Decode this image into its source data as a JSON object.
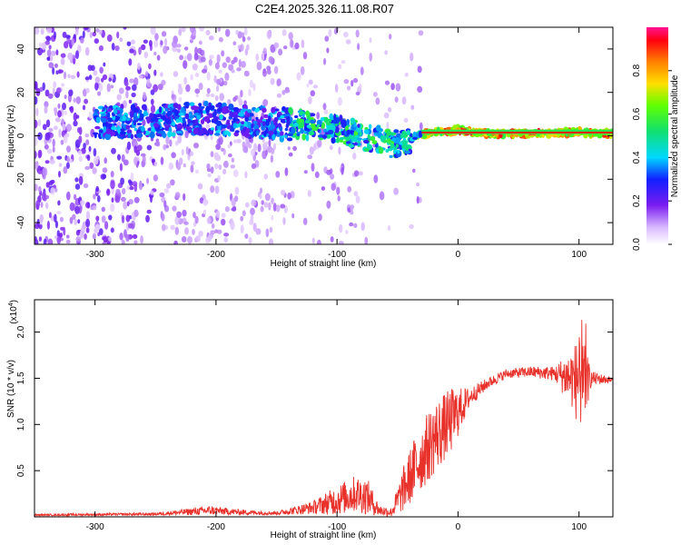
{
  "title": "C2E4.2025.326.11.08.R07",
  "chart_data": [
    {
      "type": "heatmap",
      "name": "spectrogram",
      "xlabel": "Height of straight line (km)",
      "ylabel": "Frequency (Hz)",
      "xlim": [
        -350,
        128
      ],
      "ylim": [
        -50,
        50
      ],
      "xticks": [
        -300,
        -200,
        -100,
        0,
        100
      ],
      "yticks": [
        -40,
        -20,
        0,
        20,
        40
      ],
      "xtick_labels": [
        "-300",
        "-200",
        "-100",
        "0",
        "100"
      ],
      "ytick_labels": [
        "-40",
        "-20",
        "0",
        "20",
        "40"
      ],
      "ridge": {
        "x": [
          -350,
          -300,
          -250,
          -210,
          -160,
          -130,
          -100,
          -80,
          -65,
          -55,
          -45,
          -35,
          -25,
          -15,
          -5,
          0,
          10,
          30,
          60,
          90,
          100,
          110,
          128
        ],
        "y": [
          6,
          6,
          7,
          8,
          6,
          5,
          3,
          0,
          -2,
          -4,
          -3,
          0,
          1,
          2,
          2,
          3,
          1.5,
          1,
          1,
          1.5,
          2,
          1,
          1
        ]
      },
      "colorbar": {
        "label": "Normalized spectral amplitude",
        "range": [
          0,
          1
        ],
        "ticks": [
          0.0,
          0.2,
          0.4,
          0.6,
          0.8
        ],
        "tick_labels": [
          "0.0",
          "0.2",
          "0.4",
          "0.6",
          "0.8"
        ]
      }
    },
    {
      "type": "line",
      "name": "snr",
      "xlabel": "Height of straight line (km)",
      "ylabel": "SNR (10 * v/v)",
      "yscale_note": "(x10",
      "yscale_exp": "4",
      "xlim": [
        -350,
        128
      ],
      "ylim": [
        0,
        2.35
      ],
      "xticks": [
        -300,
        -200,
        -100,
        0,
        100
      ],
      "yticks": [
        0.5,
        1.0,
        1.5,
        2.0
      ],
      "xtick_labels": [
        "-300",
        "-200",
        "-100",
        "0",
        "100"
      ],
      "ytick_labels": [
        "0.5",
        "1.0",
        "1.5",
        "2.0"
      ],
      "series_color": "#e8312a",
      "envelope": {
        "x": [
          -350,
          -250,
          -205,
          -180,
          -150,
          -120,
          -100,
          -85,
          -75,
          -65,
          -55,
          -45,
          -35,
          -20,
          -5,
          10,
          25,
          40,
          60,
          80,
          95,
          100,
          105,
          110,
          128
        ],
        "mean": [
          0.02,
          0.03,
          0.07,
          0.05,
          0.04,
          0.1,
          0.18,
          0.25,
          0.22,
          0.07,
          0.05,
          0.3,
          0.55,
          0.85,
          1.05,
          1.3,
          1.45,
          1.55,
          1.57,
          1.55,
          1.5,
          1.45,
          1.45,
          1.5,
          1.48
        ],
        "amp": [
          0.01,
          0.015,
          0.05,
          0.03,
          0.02,
          0.07,
          0.16,
          0.2,
          0.2,
          0.06,
          0.05,
          0.25,
          0.35,
          0.4,
          0.35,
          0.1,
          0.06,
          0.05,
          0.06,
          0.08,
          0.35,
          0.5,
          0.4,
          0.08,
          0.03
        ]
      }
    }
  ]
}
